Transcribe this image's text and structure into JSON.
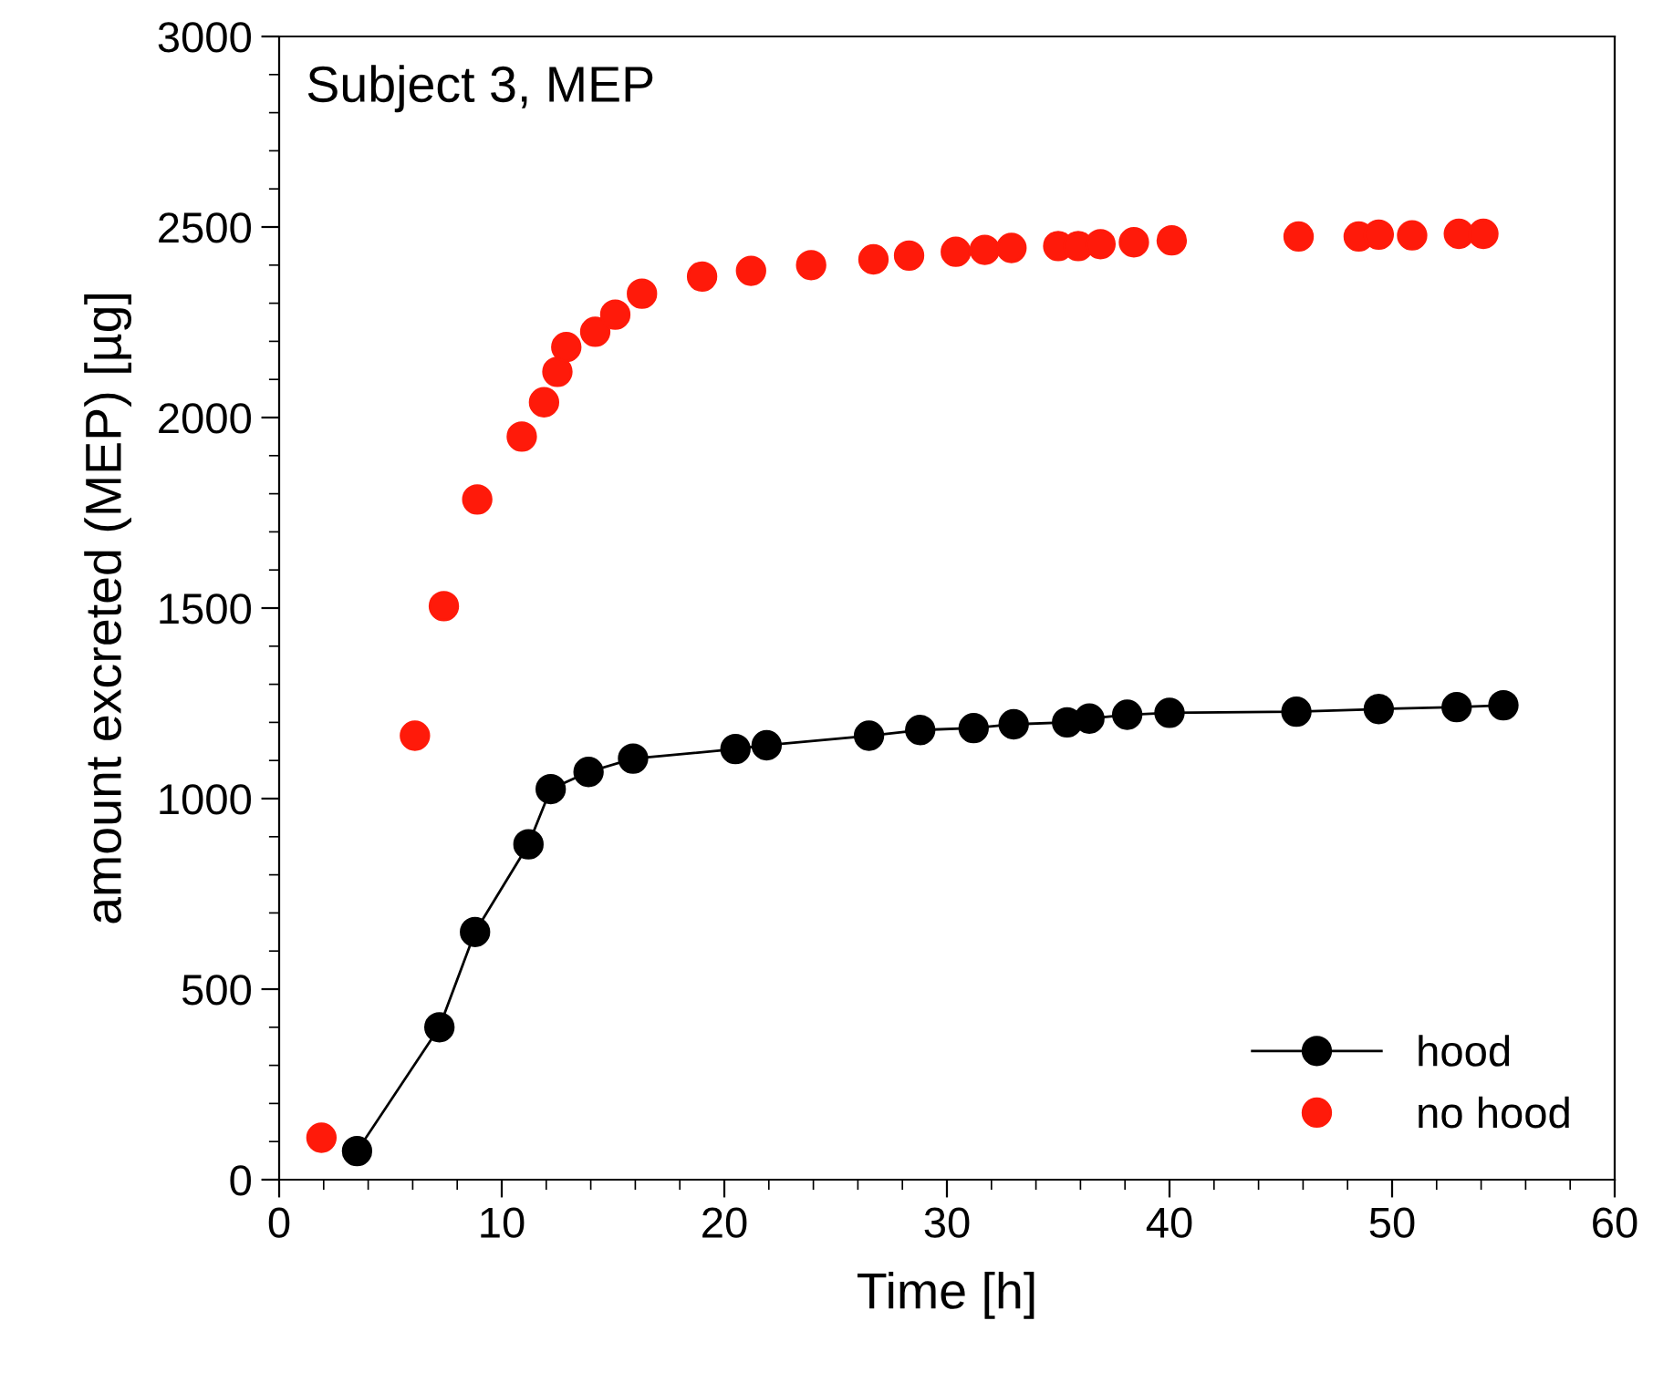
{
  "chart_data": {
    "type": "scatter",
    "title": "Subject 3, MEP",
    "xlabel": "Time [h]",
    "ylabel": "amount excreted (MEP) [µg]",
    "xlim": [
      0,
      60
    ],
    "xticks": [
      0,
      10,
      20,
      30,
      40,
      50,
      60
    ],
    "ylim": [
      0,
      3000
    ],
    "yticks": [
      0,
      500,
      1000,
      1500,
      2000,
      2500,
      3000
    ],
    "grid": false,
    "legend": "bottom right",
    "marker": "circle",
    "series": [
      {
        "name": "hood",
        "type": "line",
        "color": "#000000",
        "line_style": "solid",
        "x": [
          3.5,
          7.2,
          8.8,
          11.2,
          12.2,
          13.9,
          15.9,
          20.5,
          21.9,
          26.5,
          28.8,
          31.2,
          33.0,
          35.4,
          36.4,
          38.1,
          40.0,
          45.7,
          49.4,
          52.9,
          55.0
        ],
        "values": [
          75,
          400,
          650,
          880,
          1025,
          1070,
          1105,
          1130,
          1140,
          1165,
          1180,
          1185,
          1195,
          1200,
          1210,
          1220,
          1225,
          1228,
          1235,
          1240,
          1245
        ]
      },
      {
        "name": "no hood",
        "color": "#ff1a0a",
        "x": [
          1.9,
          6.1,
          7.4,
          8.9,
          10.9,
          11.9,
          12.5,
          12.9,
          14.2,
          15.1,
          16.3,
          19.0,
          21.2,
          23.9,
          26.7,
          28.3,
          30.4,
          31.7,
          32.9,
          35.0,
          35.9,
          36.9,
          38.4,
          40.1,
          45.8,
          48.5,
          49.4,
          50.9,
          53.0,
          54.1
        ],
        "values": [
          110,
          1165,
          1505,
          1785,
          1950,
          2040,
          2120,
          2185,
          2225,
          2270,
          2325,
          2370,
          2385,
          2400,
          2415,
          2425,
          2435,
          2440,
          2445,
          2450,
          2450,
          2455,
          2460,
          2465,
          2475,
          2475,
          2480,
          2478,
          2482,
          2482
        ]
      }
    ]
  }
}
